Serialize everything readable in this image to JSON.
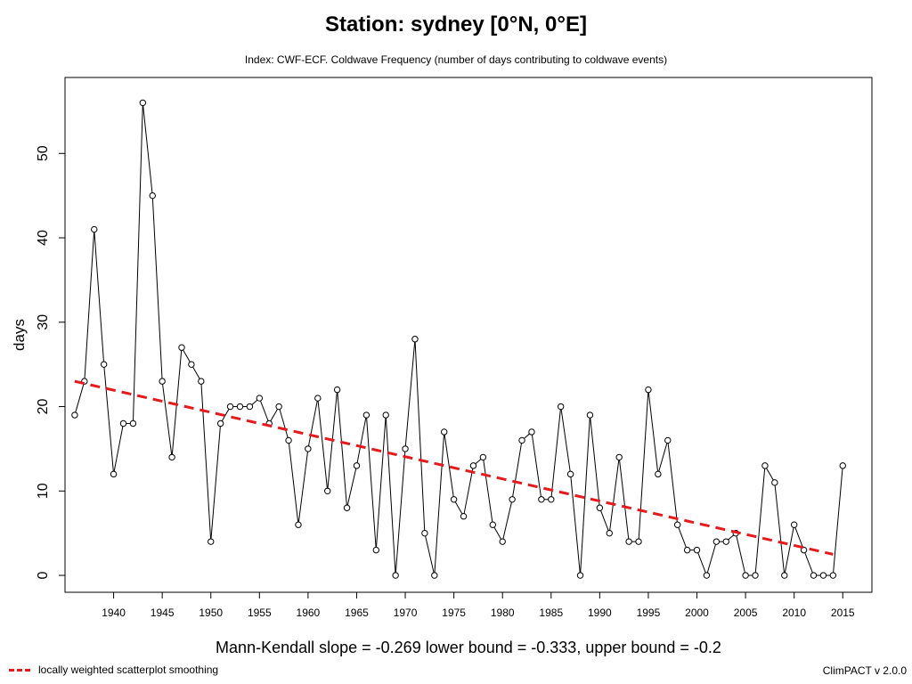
{
  "title": "Station: sydney [0°N, 0°E]",
  "subtitle": "Index: CWF-ECF. Coldwave Frequency (number of days contributing to coldwave events)",
  "stats": "Mann-Kendall slope = -0.269   lower bound = -0.333,   upper bound = -0.2",
  "legend_label": "locally weighted scatterplot smoothing",
  "version": "ClimPACT v 2.0.0",
  "colors": {
    "series": "#000000",
    "trend": "#e41a1c"
  },
  "chart_data": {
    "type": "line",
    "xlabel": "",
    "ylabel": "days",
    "xlim": [
      1935,
      2018
    ],
    "ylim": [
      -2,
      59
    ],
    "x_ticks": [
      1940,
      1945,
      1950,
      1955,
      1960,
      1965,
      1970,
      1975,
      1980,
      1985,
      1990,
      1995,
      2000,
      2005,
      2010,
      2015
    ],
    "y_ticks": [
      0,
      10,
      20,
      30,
      40,
      50
    ],
    "grid": false,
    "x": [
      1936,
      1937,
      1938,
      1939,
      1940,
      1941,
      1942,
      1943,
      1944,
      1945,
      1946,
      1947,
      1948,
      1949,
      1950,
      1951,
      1952,
      1953,
      1954,
      1955,
      1956,
      1957,
      1958,
      1959,
      1960,
      1961,
      1962,
      1963,
      1964,
      1965,
      1966,
      1967,
      1968,
      1969,
      1970,
      1971,
      1972,
      1973,
      1974,
      1975,
      1976,
      1977,
      1978,
      1979,
      1980,
      1981,
      1982,
      1983,
      1984,
      1985,
      1986,
      1987,
      1988,
      1989,
      1990,
      1991,
      1992,
      1993,
      1994,
      1995,
      1996,
      1997,
      1998,
      1999,
      2000,
      2001,
      2002,
      2003,
      2004,
      2005,
      2006,
      2007,
      2008,
      2009,
      2010,
      2011,
      2012,
      2013,
      2014,
      2015
    ],
    "values": [
      19,
      23,
      41,
      25,
      12,
      18,
      18,
      56,
      45,
      23,
      14,
      27,
      25,
      23,
      4,
      18,
      20,
      20,
      20,
      21,
      18,
      20,
      16,
      6,
      15,
      21,
      10,
      22,
      8,
      13,
      19,
      3,
      19,
      0,
      15,
      28,
      5,
      0,
      17,
      9,
      7,
      13,
      14,
      6,
      4,
      9,
      16,
      17,
      9,
      9,
      20,
      12,
      0,
      19,
      8,
      5,
      14,
      4,
      4,
      22,
      12,
      16,
      6,
      3,
      3,
      0,
      4,
      4,
      5,
      0,
      0,
      13,
      11,
      0,
      6,
      3,
      0,
      0,
      0,
      13
    ],
    "trend": {
      "name": "locally weighted scatterplot smoothing",
      "x": [
        1936,
        2014
      ],
      "values": [
        23.0,
        2.5
      ]
    }
  }
}
